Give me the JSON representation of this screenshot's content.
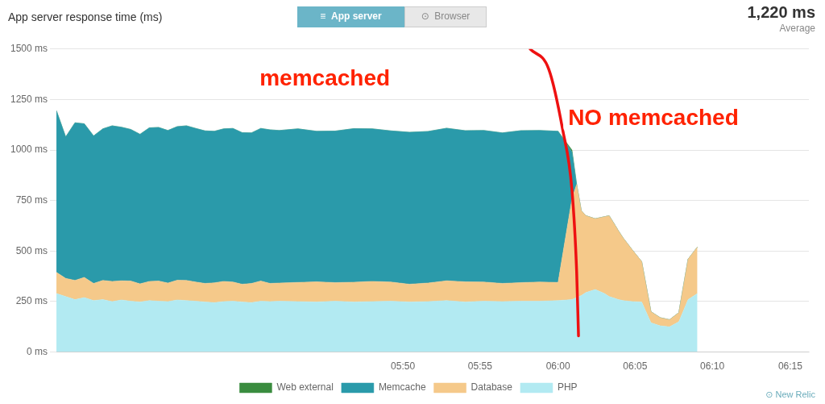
{
  "chart_data": {
    "type": "area",
    "stacked": true,
    "title": "App server response time (ms)",
    "stat_value": "1,220 ms",
    "stat_label": "Average",
    "buttons": [
      "≡  App server",
      "⊙  Browser"
    ],
    "watermark": "⊙ New Relic",
    "annotations": [
      {
        "text": "memcached",
        "color": "#ff2200"
      },
      {
        "text": "NO memcached",
        "color": "#ff2200"
      }
    ],
    "divider": {
      "x": [
        5.97,
        5.99,
        6.005,
        6.015,
        6.02,
        6.022
      ],
      "y": [
        1500,
        1400,
        1100,
        800,
        400,
        80
      ],
      "color": "#ee1111"
    },
    "grid": "y",
    "legend": "bottom",
    "xlim": [
      5.46,
      6.27
    ],
    "xticks": [
      {
        "value": 5.833,
        "label": "05:50"
      },
      {
        "value": 5.916,
        "label": "05:55"
      },
      {
        "value": 6.0,
        "label": "06:00"
      },
      {
        "value": 6.083,
        "label": "06:05"
      },
      {
        "value": 6.166,
        "label": "06:10"
      },
      {
        "value": 6.25,
        "label": "06:15"
      }
    ],
    "ylim": [
      0,
      1500
    ],
    "yticks": [
      {
        "value": 0,
        "label": "0 ms"
      },
      {
        "value": 250,
        "label": "250 ms"
      },
      {
        "value": 500,
        "label": "500 ms"
      },
      {
        "value": 750,
        "label": "750 ms"
      },
      {
        "value": 1000,
        "label": "1000 ms"
      },
      {
        "value": 1250,
        "label": "1250 ms"
      },
      {
        "value": 1500,
        "label": "1500 ms"
      }
    ],
    "x": [
      5.46,
      5.47,
      5.48,
      5.49,
      5.5,
      5.51,
      5.52,
      5.53,
      5.54,
      5.55,
      5.56,
      5.57,
      5.58,
      5.59,
      5.6,
      5.61,
      5.62,
      5.63,
      5.64,
      5.65,
      5.66,
      5.67,
      5.68,
      5.69,
      5.7,
      5.72,
      5.74,
      5.76,
      5.78,
      5.8,
      5.82,
      5.84,
      5.86,
      5.88,
      5.9,
      5.92,
      5.94,
      5.96,
      5.98,
      6.0,
      6.015,
      6.02,
      6.025,
      6.03,
      6.04,
      6.05,
      6.055,
      6.06,
      6.065,
      6.07,
      6.08,
      6.09,
      6.1,
      6.11,
      6.12,
      6.13,
      6.14,
      6.15
    ],
    "series": [
      {
        "name": "PHP",
        "color": "#b2eaf2",
        "values": [
          290,
          275,
          260,
          270,
          255,
          260,
          250,
          258,
          252,
          248,
          255,
          252,
          250,
          258,
          255,
          252,
          248,
          245,
          250,
          252,
          248,
          245,
          252,
          250,
          252,
          250,
          248,
          252,
          248,
          250,
          252,
          248,
          250,
          255,
          248,
          252,
          250,
          252,
          252,
          255,
          260,
          270,
          280,
          295,
          310,
          290,
          275,
          268,
          260,
          255,
          250,
          248,
          145,
          130,
          125,
          150,
          260,
          290
        ]
      },
      {
        "name": "Database",
        "color": "#f5c98a",
        "values": [
          105,
          90,
          95,
          100,
          85,
          95,
          100,
          95,
          100,
          90,
          95,
          100,
          92,
          98,
          100,
          95,
          92,
          98,
          100,
          95,
          88,
          95,
          100,
          90,
          90,
          95,
          100,
          92,
          98,
          100,
          95,
          88,
          92,
          98,
          100,
          95,
          90,
          92,
          95,
          90,
          500,
          560,
          420,
          380,
          350,
          380,
          400,
          370,
          340,
          310,
          255,
          200,
          55,
          40,
          35,
          45,
          200,
          230
        ]
      },
      {
        "name": "Memcache",
        "color": "#2a9aaa",
        "values": [
          800,
          700,
          780,
          760,
          730,
          750,
          770,
          760,
          750,
          740,
          760,
          760,
          755,
          760,
          765,
          760,
          755,
          750,
          755,
          760,
          750,
          745,
          755,
          760,
          755,
          760,
          745,
          750,
          760,
          755,
          748,
          752,
          750,
          755,
          748,
          750,
          745,
          752,
          750,
          748,
          230,
          0,
          0,
          0,
          0,
          0,
          0,
          0,
          0,
          0,
          0,
          0,
          0,
          0,
          0,
          0,
          0,
          0
        ]
      },
      {
        "name": "Web external",
        "color": "#3a8c3f",
        "values": [
          0,
          0,
          0,
          0,
          0,
          0,
          0,
          0,
          0,
          0,
          0,
          0,
          0,
          0,
          0,
          0,
          0,
          0,
          0,
          0,
          0,
          0,
          0,
          0,
          0,
          0,
          0,
          0,
          0,
          0,
          0,
          0,
          0,
          0,
          0,
          0,
          0,
          0,
          0,
          0,
          10,
          0,
          0,
          0,
          0,
          0,
          0,
          0,
          0,
          0,
          0,
          0,
          0,
          0,
          0,
          0,
          0,
          0
        ]
      }
    ]
  }
}
